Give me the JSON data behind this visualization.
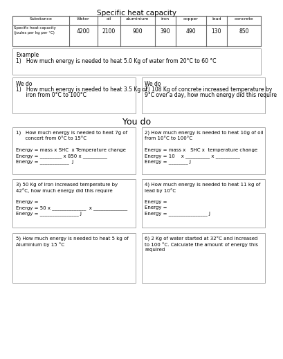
{
  "title": "Specific heat capacity",
  "table_headers": [
    "Substance",
    "Water",
    "oil",
    "aluminium",
    "iron",
    "copper",
    "lead",
    "concrete"
  ],
  "table_row1": [
    "Specific heat capacity\n(joules per kg per °C)",
    "4200",
    "2100",
    "900",
    "390",
    "490",
    "130",
    "850"
  ],
  "example_label": "Example",
  "example_line": "1)   How much energy is needed to heat 5.0 Kg of water from 20°C to 60 °C",
  "wedo_box1_lines": [
    "We do",
    "1)   How much energy is needed to heat 3.5 Kg of",
    "      iron from 0°C to 100°C"
  ],
  "wedo_box2_lines": [
    "We do",
    "2) 108 Kg of concrete increased temperature by",
    "9°C over a day, how much energy did this require"
  ],
  "youdo_title": "You do",
  "youdo_boxes": [
    [
      "1)   How much energy is needed to heat 7g of",
      "      concert from 0°C to 15°C",
      "",
      "Energy = mass x SHC  x Temperature change",
      "Energy = _________ x 850 x __________",
      "Energy = ____________  J"
    ],
    [
      "2) How much energy is needed to heat 10g of oil",
      "from 10°C to 100°C",
      "",
      "Energy = mass x   SHC x  temperature change",
      "Energy = 10    x __________ x __________",
      "Energy = ________ J"
    ],
    [
      "3) 50 Kg of Iron increased temperature by",
      "42°C, how much energy did this require",
      "",
      "Energy =",
      "Energy = 50 x ______________  x ______________",
      "Energy = ________________ J"
    ],
    [
      "4) How much energy is needed to heat 11 kg of",
      "lead by 10°C",
      "",
      "Energy =",
      "Energy =",
      "Energy = ________________ J"
    ],
    [
      "5) How much energy is needed to heat 5 kg of",
      "Aluminium by 15 °C"
    ],
    [
      "6) 2 Kg of water started at 32°C and increased",
      "to 100 °C. Calculate the amount of energy this",
      "required"
    ]
  ],
  "bg_color": "#ffffff",
  "border_color": "#aaaaaa",
  "text_color": "#000000"
}
